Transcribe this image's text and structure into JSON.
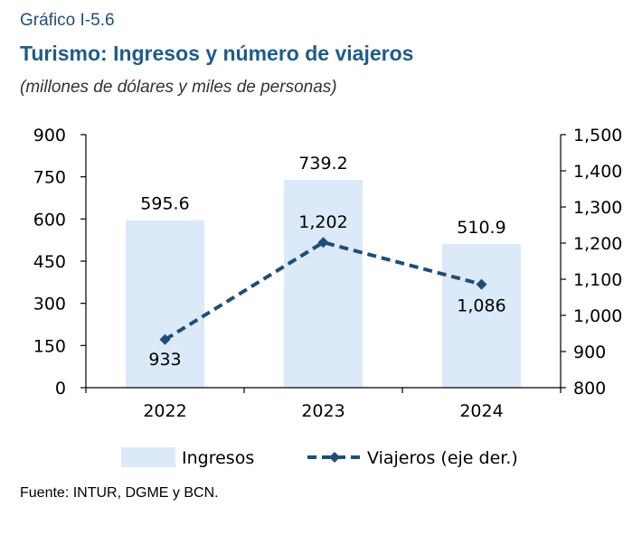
{
  "header": {
    "kicker": "Gráfico I-5.6",
    "title": "Turismo: Ingresos y número de viajeros",
    "subtitle": "(millones de dólares y miles de personas)"
  },
  "source": "Fuente: INTUR, DGME y BCN.",
  "colors": {
    "bar": "#dce9f8",
    "line": "#1f4e79",
    "axis": "#000000"
  },
  "chart_data": {
    "type": "bar",
    "categories": [
      "2022",
      "2023",
      "2024"
    ],
    "series": [
      {
        "name": "Ingresos",
        "type": "bar",
        "axis": "left",
        "values": [
          595.6,
          739.2,
          510.9
        ],
        "labels": [
          "595.6",
          "739.2",
          "510.9"
        ]
      },
      {
        "name": "Viajeros (eje der.)",
        "type": "line",
        "axis": "right",
        "values": [
          933,
          1202,
          1086
        ],
        "labels": [
          "933",
          "1,202",
          "1,086"
        ]
      }
    ],
    "left_axis": {
      "ylim": [
        0,
        900
      ],
      "ticks": [
        "0",
        "150",
        "300",
        "450",
        "600",
        "750",
        "900"
      ]
    },
    "right_axis": {
      "ylim": [
        800,
        1500
      ],
      "ticks": [
        "800",
        "900",
        "1,000",
        "1,100",
        "1,200",
        "1,300",
        "1,400",
        "1,500"
      ]
    },
    "grid": false,
    "legend_position": "bottom"
  }
}
